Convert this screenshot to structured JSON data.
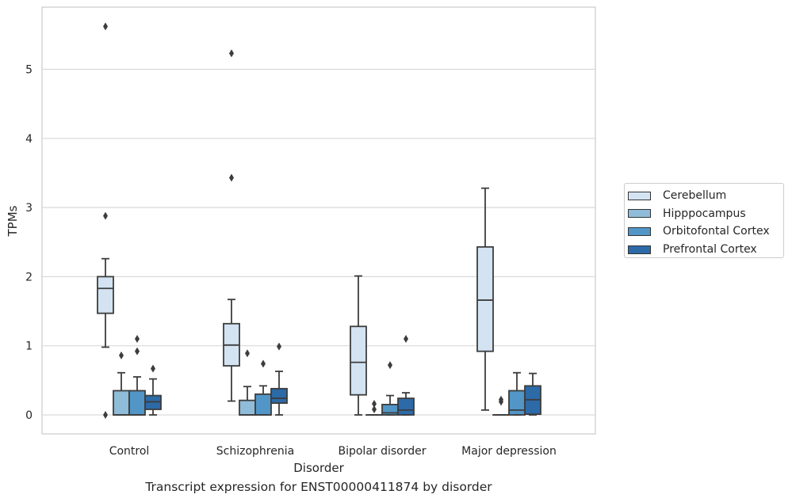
{
  "chart_data": {
    "type": "box",
    "caption": "Transcript expression for ENST00000411874 by disorder",
    "xlabel": "Disorder",
    "ylabel": "TPMs",
    "ylim": [
      -0.28,
      5.9
    ],
    "yticks": [
      0,
      1,
      2,
      3,
      4,
      5
    ],
    "grid": "horizontal",
    "legend_position": "right",
    "categories": [
      "Control",
      "Schizophrenia",
      "Bipolar disorder",
      "Major depression"
    ],
    "series": [
      {
        "name": "Cerebellum",
        "color": "#d3e3f2",
        "boxes": [
          {
            "whislo": 0.98,
            "q1": 1.47,
            "med": 1.83,
            "q3": 2.0,
            "whishi": 2.26,
            "fliers": [
              5.62,
              2.88,
              0.0
            ]
          },
          {
            "whislo": 0.2,
            "q1": 0.71,
            "med": 1.01,
            "q3": 1.32,
            "whishi": 1.67,
            "fliers": [
              5.23,
              3.43
            ]
          },
          {
            "whislo": 0.0,
            "q1": 0.29,
            "med": 0.76,
            "q3": 1.28,
            "whishi": 2.01,
            "fliers": []
          },
          {
            "whislo": 0.07,
            "q1": 0.92,
            "med": 1.66,
            "q3": 2.43,
            "whishi": 3.28,
            "fliers": []
          }
        ]
      },
      {
        "name": "Hipppocampus",
        "color": "#8fbcd9",
        "boxes": [
          {
            "whislo": 0.0,
            "q1": 0.0,
            "med": 0.0,
            "q3": 0.35,
            "whishi": 0.61,
            "fliers": [
              0.86
            ]
          },
          {
            "whislo": 0.0,
            "q1": 0.0,
            "med": 0.0,
            "q3": 0.21,
            "whishi": 0.41,
            "fliers": [
              0.89
            ]
          },
          {
            "whislo": 0.0,
            "q1": 0.0,
            "med": 0.0,
            "q3": 0.0,
            "whishi": 0.0,
            "fliers": [
              0.16,
              0.08
            ]
          },
          {
            "whislo": 0.0,
            "q1": 0.0,
            "med": 0.0,
            "q3": 0.0,
            "whishi": 0.0,
            "fliers": [
              0.22,
              0.19
            ]
          }
        ]
      },
      {
        "name": "Orbitofontal Cortex",
        "color": "#5196c7",
        "boxes": [
          {
            "whislo": 0.0,
            "q1": 0.0,
            "med": 0.0,
            "q3": 0.35,
            "whishi": 0.55,
            "fliers": [
              1.1,
              0.92
            ]
          },
          {
            "whislo": 0.0,
            "q1": 0.0,
            "med": 0.0,
            "q3": 0.3,
            "whishi": 0.42,
            "fliers": [
              0.74
            ]
          },
          {
            "whislo": 0.0,
            "q1": 0.0,
            "med": 0.03,
            "q3": 0.15,
            "whishi": 0.28,
            "fliers": [
              0.72
            ]
          },
          {
            "whislo": 0.0,
            "q1": 0.0,
            "med": 0.07,
            "q3": 0.35,
            "whishi": 0.61,
            "fliers": []
          }
        ]
      },
      {
        "name": "Prefrontal Cortex",
        "color": "#2c6aa8",
        "boxes": [
          {
            "whislo": 0.0,
            "q1": 0.08,
            "med": 0.19,
            "q3": 0.28,
            "whishi": 0.52,
            "fliers": [
              0.67
            ]
          },
          {
            "whislo": 0.0,
            "q1": 0.17,
            "med": 0.24,
            "q3": 0.38,
            "whishi": 0.63,
            "fliers": [
              0.99
            ]
          },
          {
            "whislo": 0.0,
            "q1": 0.0,
            "med": 0.07,
            "q3": 0.24,
            "whishi": 0.32,
            "fliers": [
              1.1
            ]
          },
          {
            "whislo": 0.0,
            "q1": 0.01,
            "med": 0.22,
            "q3": 0.42,
            "whishi": 0.6,
            "fliers": []
          }
        ]
      }
    ]
  }
}
